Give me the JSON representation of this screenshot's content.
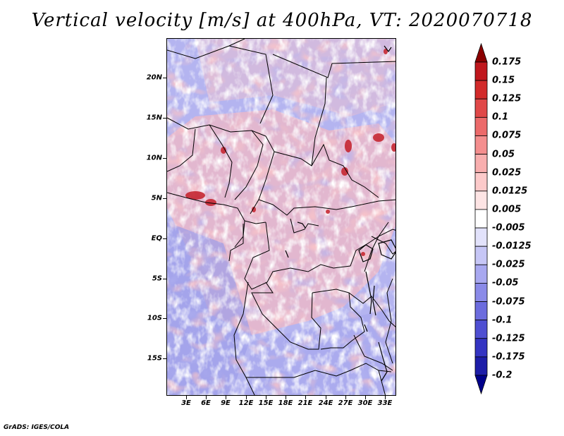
{
  "title": "Vertical velocity [m/s] at 400hPa, VT: 2020070718",
  "credit": "GrADS: IGES/COLA",
  "map": {
    "lat_labels": [
      "20N",
      "15N",
      "10N",
      "5N",
      "EQ",
      "5S",
      "10S",
      "15S"
    ],
    "lon_labels": [
      "3E",
      "6E",
      "9E",
      "12E",
      "15E",
      "18E",
      "21E",
      "24E",
      "27E",
      "30E",
      "33E"
    ]
  },
  "colorbar": {
    "labels": [
      "0.175",
      "0.15",
      "0.125",
      "0.1",
      "0.075",
      "0.05",
      "0.025",
      "0.0125",
      "0.005",
      "-0.005",
      "-0.0125",
      "-0.025",
      "-0.05",
      "-0.075",
      "-0.1",
      "-0.125",
      "-0.175",
      "-0.2"
    ],
    "colors": [
      "#a50f15",
      "#c0171d",
      "#d22a2a",
      "#e04848",
      "#ec6a6a",
      "#f48e8e",
      "#f8aeae",
      "#fccaca",
      "#fde4e4",
      "#ffffff",
      "#e2e2fb",
      "#c6c6f6",
      "#a8a8f0",
      "#8a8ae8",
      "#6c6cde",
      "#4f4fd2",
      "#3434c2",
      "#1d1da8",
      "#0b0b8a"
    ],
    "arrow_top_color": "#8b0000",
    "arrow_bottom_color": "#00008b"
  }
}
